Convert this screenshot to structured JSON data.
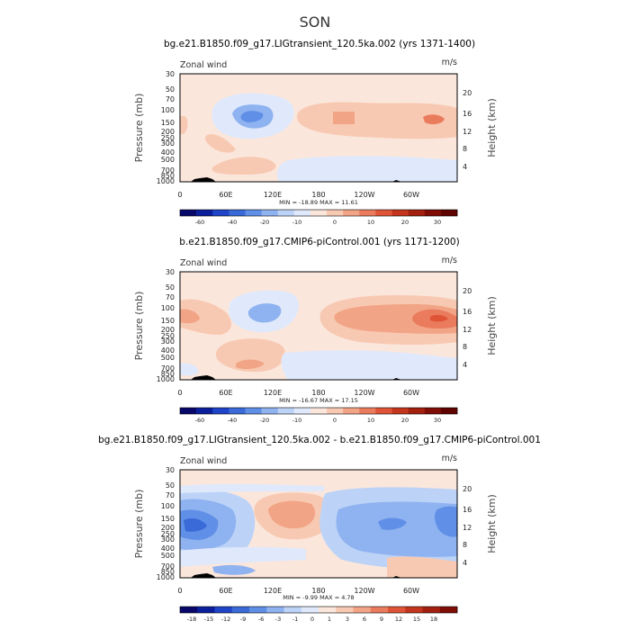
{
  "season": "SON",
  "chart_data": [
    {
      "type": "contour",
      "title": "bg.e21.B1850.f09_g17.LIGtransient_120.5ka.002 (yrs 1371-1400)",
      "left_label": "Zonal wind",
      "units": "m/s",
      "xlabel": "",
      "ylabel": "Pressure (mb)",
      "y2label": "Height (km)",
      "x_ticks": [
        "0",
        "60E",
        "120E",
        "180",
        "120W",
        "60W"
      ],
      "y_ticks": [
        "30",
        "50",
        "70",
        "100",
        "150",
        "200",
        "250",
        "300",
        "400",
        "500",
        "700",
        "850",
        "1000"
      ],
      "y2_ticks": [
        "20",
        "16",
        "12",
        "8",
        "4"
      ],
      "stats": "MIN = -18.89   MAX =  11.61",
      "colorbar_labels": [
        "-60",
        "-40",
        "-20",
        "-10",
        "0",
        "10",
        "20",
        "30"
      ],
      "colorbar_colors": [
        "#08086a",
        "#0b1f9c",
        "#1f44c8",
        "#3a6ad8",
        "#5f8fe6",
        "#8fb2f0",
        "#bcd3f7",
        "#dfe9fb",
        "#fbe6dc",
        "#f8c9b2",
        "#f2a486",
        "#ea7b5d",
        "#df5437",
        "#c4351d",
        "#a3200f",
        "#7f0c05",
        "#5e0300"
      ]
    },
    {
      "type": "contour",
      "title": "b.e21.B1850.f09_g17.CMIP6-piControl.001 (yrs 1171-1200)",
      "left_label": "Zonal wind",
      "units": "m/s",
      "xlabel": "",
      "ylabel": "Pressure (mb)",
      "y2label": "Height (km)",
      "x_ticks": [
        "0",
        "60E",
        "120E",
        "180",
        "120W",
        "60W"
      ],
      "y_ticks": [
        "30",
        "50",
        "70",
        "100",
        "150",
        "200",
        "250",
        "300",
        "400",
        "500",
        "700",
        "850",
        "1000"
      ],
      "y2_ticks": [
        "20",
        "16",
        "12",
        "8",
        "4"
      ],
      "stats": "MIN = -16.67   MAX =  17.15",
      "colorbar_labels": [
        "-60",
        "-40",
        "-20",
        "-10",
        "0",
        "10",
        "20",
        "30"
      ],
      "colorbar_colors": [
        "#08086a",
        "#0b1f9c",
        "#1f44c8",
        "#3a6ad8",
        "#5f8fe6",
        "#8fb2f0",
        "#bcd3f7",
        "#dfe9fb",
        "#fbe6dc",
        "#f8c9b2",
        "#f2a486",
        "#ea7b5d",
        "#df5437",
        "#c4351d",
        "#a3200f",
        "#7f0c05",
        "#5e0300"
      ]
    },
    {
      "type": "contour",
      "title": "bg.e21.B1850.f09_g17.LIGtransient_120.5ka.002 - b.e21.B1850.f09_g17.CMIP6-piControl.001",
      "left_label": "Zonal wind",
      "units": "m/s",
      "xlabel": "",
      "ylabel": "Pressure (mb)",
      "y2label": "Height (km)",
      "x_ticks": [
        "0",
        "60E",
        "120E",
        "180",
        "120W",
        "60W"
      ],
      "y_ticks": [
        "30",
        "50",
        "70",
        "100",
        "150",
        "200",
        "250",
        "300",
        "400",
        "500",
        "700",
        "850",
        "1000"
      ],
      "y2_ticks": [
        "20",
        "16",
        "12",
        "8",
        "4"
      ],
      "stats": "MIN =  -9.99   MAX =   4.78",
      "colorbar_labels": [
        "-18",
        "-15",
        "-12",
        "-9",
        "-6",
        "-3",
        "-1",
        "0",
        "1",
        "3",
        "6",
        "9",
        "12",
        "15",
        "18"
      ],
      "colorbar_colors": [
        "#08086a",
        "#0b1f9c",
        "#1f44c8",
        "#3a6ad8",
        "#5f8fe6",
        "#8fb2f0",
        "#bcd3f7",
        "#dfe9fb",
        "#fbe6dc",
        "#f8c9b2",
        "#f2a486",
        "#ea7b5d",
        "#df5437",
        "#c4351d",
        "#a3200f",
        "#7f0c05"
      ]
    }
  ]
}
